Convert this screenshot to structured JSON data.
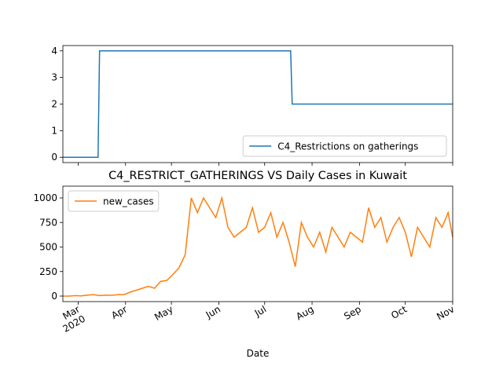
{
  "chart_data": [
    {
      "type": "line",
      "xlim": [
        "2020-02-20",
        "2020-11-01"
      ],
      "xticks": [
        "2020-03-01",
        "2020-04-01",
        "2020-05-01",
        "2020-06-01",
        "2020-07-01",
        "2020-08-01",
        "2020-09-01",
        "2020-10-01",
        "2020-11-01"
      ],
      "ylim": [
        -0.2,
        4.2
      ],
      "yticks": [
        0,
        1,
        2,
        3,
        4
      ],
      "legend": "lower right",
      "series": [
        {
          "name": "C4_Restrictions on gatherings",
          "color": "#1f77b4",
          "x": [
            "2020-02-20",
            "2020-03-14",
            "2020-03-15",
            "2020-07-18",
            "2020-07-19",
            "2020-11-01"
          ],
          "values": [
            0,
            0,
            4,
            4,
            2,
            2
          ]
        }
      ]
    },
    {
      "type": "line",
      "title": "C4_RESTRICT_GATHERINGS VS Daily Cases in Kuwait",
      "x_label": "Date",
      "xlim": [
        "2020-02-20",
        "2020-11-01"
      ],
      "xticks": [
        {
          "value": "2020-03-01",
          "label": "Mar"
        },
        {
          "value": "2020-04-01",
          "label": "Apr"
        },
        {
          "value": "2020-05-01",
          "label": "May"
        },
        {
          "value": "2020-06-01",
          "label": "Jun"
        },
        {
          "value": "2020-07-01",
          "label": "Jul"
        },
        {
          "value": "2020-08-01",
          "label": "Aug"
        },
        {
          "value": "2020-09-01",
          "label": "Sep"
        },
        {
          "value": "2020-10-01",
          "label": "Oct"
        },
        {
          "value": "2020-11-01",
          "label": "Nov"
        }
      ],
      "xtick_year": "2020",
      "ylim": [
        -56,
        1120
      ],
      "yticks": [
        0,
        250,
        500,
        750,
        1000
      ],
      "legend": "upper left",
      "series": [
        {
          "name": "new_cases",
          "color": "#ff7f0e",
          "x": [
            "2020-02-20",
            "2020-02-24",
            "2020-02-28",
            "2020-03-03",
            "2020-03-07",
            "2020-03-11",
            "2020-03-15",
            "2020-03-19",
            "2020-03-23",
            "2020-03-27",
            "2020-03-31",
            "2020-04-04",
            "2020-04-08",
            "2020-04-12",
            "2020-04-16",
            "2020-04-20",
            "2020-04-24",
            "2020-04-28",
            "2020-05-02",
            "2020-05-06",
            "2020-05-10",
            "2020-05-14",
            "2020-05-18",
            "2020-05-22",
            "2020-05-26",
            "2020-05-30",
            "2020-06-03",
            "2020-06-07",
            "2020-06-11",
            "2020-06-15",
            "2020-06-19",
            "2020-06-23",
            "2020-06-27",
            "2020-07-01",
            "2020-07-05",
            "2020-07-09",
            "2020-07-13",
            "2020-07-17",
            "2020-07-21",
            "2020-07-25",
            "2020-07-29",
            "2020-08-02",
            "2020-08-06",
            "2020-08-10",
            "2020-08-14",
            "2020-08-18",
            "2020-08-22",
            "2020-08-26",
            "2020-08-30",
            "2020-09-03",
            "2020-09-07",
            "2020-09-11",
            "2020-09-15",
            "2020-09-19",
            "2020-09-23",
            "2020-09-27",
            "2020-10-01",
            "2020-10-05",
            "2020-10-09",
            "2020-10-13",
            "2020-10-17",
            "2020-10-21",
            "2020-10-25",
            "2020-10-29",
            "2020-11-01"
          ],
          "values": [
            0,
            0,
            5,
            2,
            10,
            15,
            5,
            10,
            8,
            15,
            15,
            40,
            60,
            80,
            100,
            80,
            150,
            160,
            220,
            290,
            420,
            1000,
            850,
            1000,
            900,
            800,
            1000,
            700,
            600,
            650,
            700,
            900,
            650,
            700,
            850,
            600,
            750,
            550,
            300,
            750,
            600,
            500,
            650,
            450,
            700,
            600,
            500,
            650,
            600,
            550,
            900,
            700,
            800,
            550,
            700,
            800,
            650,
            400,
            700,
            600,
            500,
            800,
            700,
            850,
            600
          ]
        }
      ]
    }
  ]
}
